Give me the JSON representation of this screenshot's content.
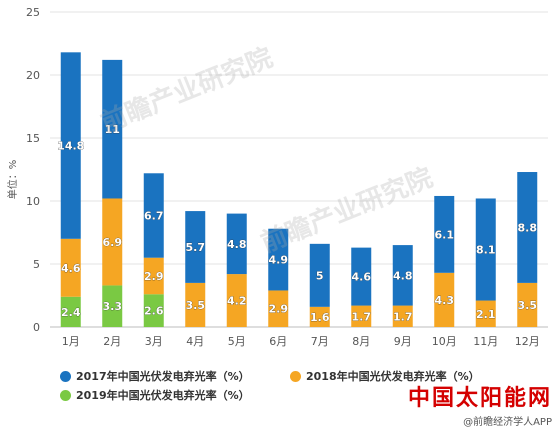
{
  "chart_data": {
    "type": "bar",
    "stacked": true,
    "categories": [
      "1月",
      "2月",
      "3月",
      "4月",
      "5月",
      "6月",
      "7月",
      "8月",
      "9月",
      "10月",
      "11月",
      "12月"
    ],
    "series": [
      {
        "name": "2019年中国光伏发电弃光率（%）",
        "color": "#7ac943",
        "values": [
          2.4,
          3.3,
          2.6,
          null,
          null,
          null,
          null,
          null,
          null,
          null,
          null,
          null
        ]
      },
      {
        "name": "2018年中国光伏发电弃光率（%）",
        "color": "#f5a623",
        "values": [
          4.6,
          6.9,
          2.9,
          3.5,
          4.2,
          2.9,
          1.6,
          1.7,
          1.7,
          4.3,
          2.1,
          3.5
        ]
      },
      {
        "name": "2017年中国光伏发电弃光率（%）",
        "color": "#1a73c0",
        "values": [
          14.8,
          11,
          6.7,
          5.7,
          4.8,
          4.9,
          5,
          4.6,
          4.8,
          6.1,
          8.1,
          8.8
        ]
      }
    ],
    "ylabel": "单位：%",
    "ylim": [
      0,
      25
    ],
    "yticks": [
      0,
      5,
      10,
      15,
      20,
      25
    ],
    "grid": true,
    "legend_position": "bottom"
  },
  "legend": [
    {
      "label": "2017年中国光伏发电弃光率（%）",
      "color": "#1a73c0"
    },
    {
      "label": "2018年中国光伏发电弃光率（%）",
      "color": "#f5a623"
    },
    {
      "label": "2019年中国光伏发电弃光率（%）",
      "color": "#7ac943"
    }
  ],
  "brand": {
    "logo_text": "中国太阳能网",
    "sub": "@前瞻经济学人APP"
  },
  "watermark": {
    "text1": "前瞻产业研究院",
    "text2": "前瞻产业研究院"
  }
}
